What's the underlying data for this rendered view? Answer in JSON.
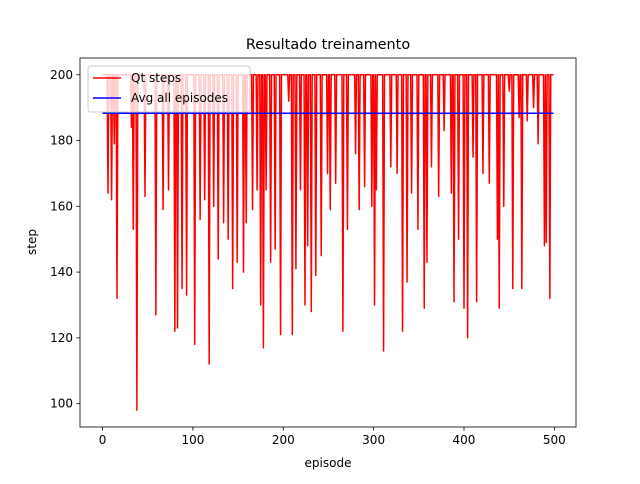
{
  "chart_data": {
    "type": "line",
    "title": "Resultado treinamento",
    "xlabel": "episode",
    "ylabel": "step",
    "xlim": [
      -24.95,
      523.95
    ],
    "ylim": [
      92.9,
      205.1
    ],
    "xticks": [
      0,
      100,
      200,
      300,
      400,
      500
    ],
    "yticks": [
      100,
      120,
      140,
      160,
      180,
      200
    ],
    "legend": "upper left",
    "series": [
      {
        "name": "Qt steps",
        "color": "#ff0000",
        "x": [
          0,
          5,
          6,
          7,
          9,
          10,
          11,
          12,
          13,
          14,
          15,
          16,
          17,
          31,
          32,
          33,
          33,
          34,
          35,
          37,
          38,
          39,
          46,
          47,
          48,
          58,
          59,
          60,
          66,
          67,
          68,
          72,
          73,
          74,
          79,
          80,
          81,
          82,
          83,
          84,
          87,
          88,
          89,
          92,
          93,
          94,
          101,
          102,
          103,
          107,
          108,
          109,
          112,
          113,
          114,
          117,
          118,
          119,
          122,
          123,
          124,
          127,
          128,
          129,
          133,
          134,
          135,
          138,
          139,
          140,
          143,
          144,
          145,
          148,
          149,
          150,
          155,
          156,
          157,
          158,
          159,
          160,
          165,
          166,
          167,
          170,
          171,
          172,
          174,
          175,
          176,
          177,
          178,
          179,
          180,
          181,
          182,
          185,
          186,
          187,
          190,
          191,
          192,
          196,
          197,
          198,
          205,
          206,
          207,
          209,
          210,
          211,
          213,
          214,
          215,
          218,
          219,
          220,
          223,
          224,
          225,
          226,
          227,
          228,
          230,
          231,
          232,
          235,
          236,
          237,
          241,
          242,
          243,
          248,
          249,
          250,
          251,
          252,
          253,
          257,
          258,
          259,
          265,
          266,
          267,
          270,
          271,
          272,
          279,
          280,
          281,
          283,
          284,
          285,
          289,
          290,
          291,
          297,
          298,
          299,
          300,
          301,
          302,
          302,
          303,
          304,
          310,
          311,
          312,
          318,
          319,
          320,
          325,
          326,
          327,
          331,
          332,
          333,
          336,
          337,
          338,
          341,
          342,
          343,
          348,
          349,
          350,
          355,
          356,
          357,
          358,
          359,
          360,
          363,
          364,
          365,
          371,
          372,
          373,
          377,
          378,
          379,
          385,
          386,
          387,
          388,
          389,
          390,
          393,
          394,
          395,
          399,
          400,
          401,
          403,
          404,
          405,
          409,
          410,
          411,
          413,
          414,
          415,
          420,
          421,
          422,
          427,
          428,
          429,
          436,
          437,
          438,
          438,
          439,
          440,
          443,
          444,
          445,
          449,
          450,
          451,
          453,
          454,
          455,
          460,
          461,
          462,
          463,
          464,
          465,
          469,
          470,
          471,
          476,
          477,
          478,
          481,
          482,
          483,
          488,
          489,
          490,
          490,
          491,
          492,
          494,
          495,
          496,
          499
        ],
        "values": [
          200,
          200,
          164,
          200,
          200,
          162,
          200,
          200,
          179,
          200,
          200,
          132,
          200,
          200,
          184,
          200,
          200,
          153,
          200,
          200,
          98,
          200,
          200,
          163,
          200,
          200,
          127,
          200,
          200,
          159,
          200,
          200,
          165,
          200,
          200,
          122,
          200,
          200,
          123,
          200,
          200,
          135,
          200,
          200,
          133,
          200,
          200,
          118,
          200,
          200,
          156,
          200,
          200,
          162,
          200,
          200,
          112,
          200,
          200,
          160,
          200,
          200,
          144,
          200,
          200,
          155,
          200,
          200,
          150,
          200,
          200,
          135,
          200,
          200,
          143,
          200,
          200,
          140,
          200,
          200,
          155,
          200,
          200,
          159,
          200,
          200,
          165,
          200,
          200,
          130,
          200,
          200,
          117,
          200,
          200,
          165,
          200,
          200,
          143,
          200,
          200,
          147,
          200,
          200,
          121,
          200,
          200,
          192,
          200,
          200,
          121,
          200,
          200,
          141,
          200,
          200,
          165,
          200,
          200,
          130,
          200,
          200,
          148,
          200,
          200,
          128,
          200,
          200,
          139,
          200,
          200,
          145,
          200,
          200,
          170,
          200,
          200,
          159,
          200,
          200,
          167,
          200,
          200,
          122,
          200,
          200,
          153,
          200,
          200,
          176,
          200,
          200,
          159,
          200,
          200,
          166,
          200,
          200,
          160,
          200,
          200,
          130,
          200,
          200,
          165,
          200,
          200,
          116,
          200,
          200,
          172,
          200,
          200,
          170,
          200,
          200,
          122,
          200,
          200,
          137,
          200,
          200,
          164,
          200,
          200,
          153,
          200,
          200,
          129,
          200,
          200,
          143,
          200,
          200,
          172,
          200,
          200,
          163,
          200,
          200,
          183,
          200,
          200,
          164,
          200,
          200,
          131,
          200,
          200,
          150,
          200,
          200,
          129,
          200,
          200,
          120,
          200,
          200,
          175,
          200,
          200,
          131,
          200,
          200,
          170,
          200,
          200,
          167,
          200,
          200,
          150,
          200,
          200,
          129,
          200,
          200,
          160,
          200,
          200,
          195,
          200,
          200,
          135,
          200,
          200,
          187,
          200,
          200,
          135,
          200,
          200,
          186,
          200,
          200,
          190,
          200,
          200,
          179,
          200,
          200,
          148,
          200,
          200,
          149,
          200,
          200,
          132,
          200,
          200
        ]
      },
      {
        "name": "Avg all episodes",
        "color": "#0000ff",
        "x": [
          0,
          499
        ],
        "values": [
          188.3,
          188.3
        ]
      }
    ]
  }
}
